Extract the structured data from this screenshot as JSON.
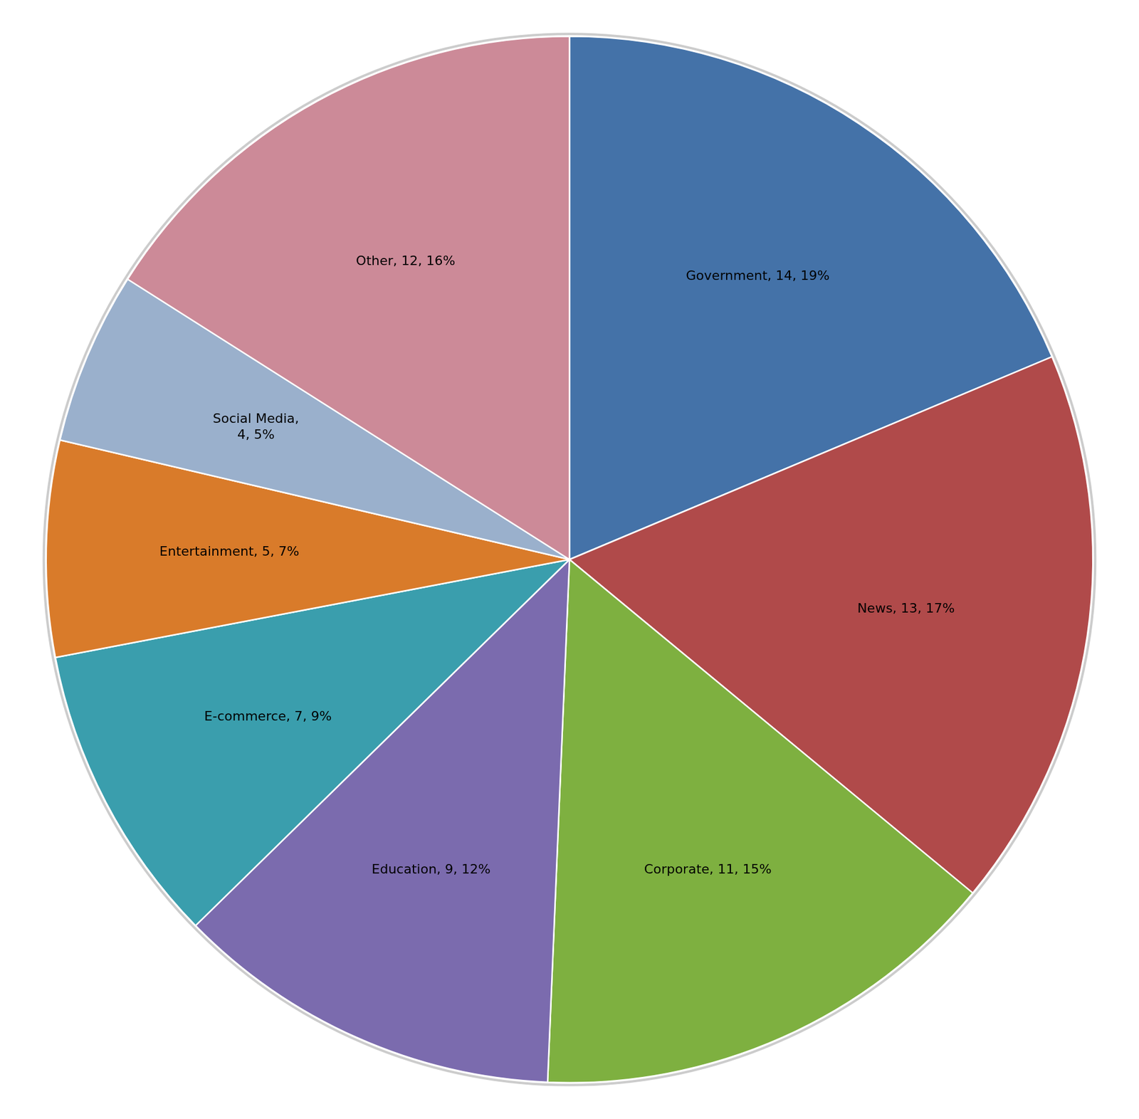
{
  "chart_data": {
    "type": "pie",
    "categories": [
      "Government, 14, 19%",
      "News, 13, 17%",
      "Corporate, 11, 15%",
      "Education, 9, 12%",
      "E-commerce, 7, 9%",
      "Entertainment, 5, 7%",
      "Social Media,\n4, 5%",
      "Other, 12, 16%"
    ],
    "values": [
      14,
      13,
      11,
      9,
      7,
      5,
      4,
      12
    ],
    "colors": [
      "#4472A8",
      "#B04A4A",
      "#7EB040",
      "#7B6BAE",
      "#3A9EAD",
      "#D97B2A",
      "#9AB0CC",
      "#CC8A98"
    ]
  }
}
